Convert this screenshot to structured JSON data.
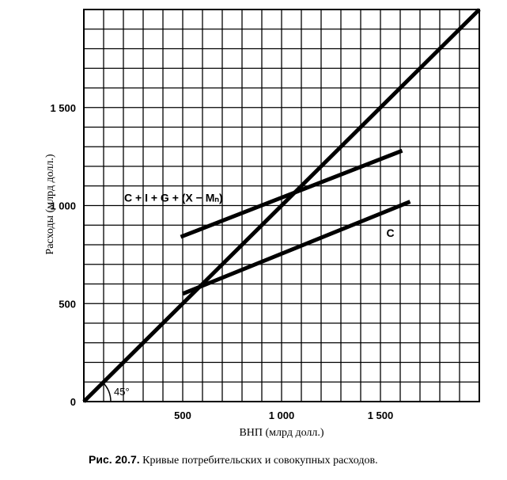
{
  "chart_data": {
    "type": "line",
    "xlabel": "ВНП (млрд долл.)",
    "ylabel": "Расходы (млрд долл.)",
    "xlim": [
      0,
      2000
    ],
    "ylim": [
      0,
      2000
    ],
    "grid": true,
    "grid_step": 100,
    "x_ticks": [
      {
        "value": 500,
        "label": "500"
      },
      {
        "value": 1000,
        "label": "1 000"
      },
      {
        "value": 1500,
        "label": "1 500"
      }
    ],
    "y_ticks": [
      {
        "value": 0,
        "label": "0"
      },
      {
        "value": 500,
        "label": "500"
      },
      {
        "value": 1000,
        "label": "1 000"
      },
      {
        "value": 1500,
        "label": "1 500"
      }
    ],
    "series": [
      {
        "name": "",
        "x": [
          0,
          2000
        ],
        "y": [
          0,
          2000
        ]
      },
      {
        "name": "C + I + G + (X − Mₙ)",
        "x": [
          490,
          1610
        ],
        "y": [
          840,
          1280
        ]
      },
      {
        "name": "C",
        "x": [
          500,
          1650
        ],
        "y": [
          550,
          1020
        ]
      }
    ],
    "annotations": {
      "angle": "45°"
    }
  },
  "caption": {
    "figure": "Рис. 20.7.",
    "text": "Кривые потребительских и совокупных расходов."
  }
}
